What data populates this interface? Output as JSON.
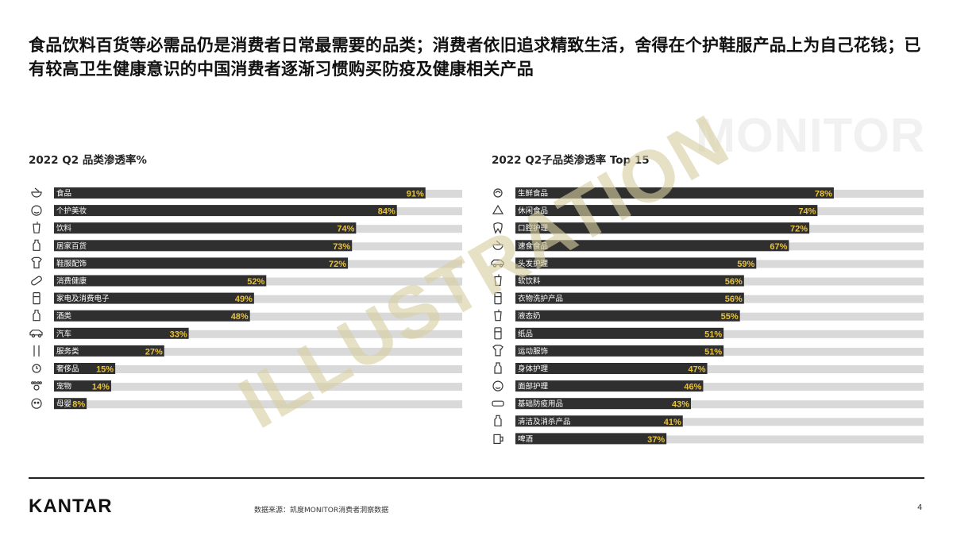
{
  "headline": "食品饮料百货等必需品仍是消费者日常最需要的品类；消费者依旧追求精致生活，舍得在个护鞋服产品上为自己花钱；已有较高卫生健康意识的中国消费者逐渐习惯购买防疫及健康相关产品",
  "watermarks": {
    "monitor": "MONITOR",
    "illustration": "ILLUSTRATION"
  },
  "colors": {
    "bar": "#2f2f2f",
    "track": "#d9d9d9",
    "value": "#e8c23b",
    "label": "#ffffff"
  },
  "chart_data": [
    {
      "type": "bar",
      "orientation": "horizontal",
      "title": "2022 Q2 品类渗透率%",
      "xlim": [
        0,
        100
      ],
      "unit": "%",
      "categories": [
        "食品",
        "个护美妆",
        "饮料",
        "居家百货",
        "鞋服配饰",
        "消费健康",
        "家电及消费电子",
        "酒类",
        "汽车",
        "服务类",
        "奢侈品",
        "宠物",
        "母婴"
      ],
      "values": [
        91,
        84,
        74,
        73,
        72,
        52,
        49,
        48,
        33,
        27,
        15,
        14,
        8
      ],
      "icons": [
        "food-bowl-icon",
        "face-icon",
        "drink-cup-icon",
        "household-bottle-icon",
        "clothing-icon",
        "pill-icon",
        "appliance-icon",
        "wine-bottle-icon",
        "car-icon",
        "service-tools-icon",
        "watch-icon",
        "paw-icon",
        "baby-icon"
      ]
    },
    {
      "type": "bar",
      "orientation": "horizontal",
      "title": "2022 Q2子品类渗透率 Top 15",
      "xlim": [
        0,
        100
      ],
      "unit": "%",
      "categories": [
        "生鲜食品",
        "休闲食品",
        "口腔护理",
        "速食食品",
        "头发护理",
        "软饮料",
        "衣物洗护产品",
        "液态奶",
        "纸品",
        "运动服饰",
        "身体护理",
        "面部护理",
        "基础防疫用品",
        "清洁及消杀产品",
        "啤酒"
      ],
      "values": [
        78,
        74,
        72,
        67,
        59,
        56,
        56,
        55,
        51,
        51,
        47,
        46,
        43,
        41,
        37
      ],
      "icons": [
        "fresh-food-icon",
        "snack-icon",
        "tooth-icon",
        "instant-food-icon",
        "hair-care-icon",
        "soft-drink-icon",
        "laundry-icon",
        "milk-icon",
        "tissue-icon",
        "sportswear-icon",
        "body-care-icon",
        "face-care-icon",
        "mask-icon",
        "cleaning-spray-icon",
        "beer-icon"
      ]
    }
  ],
  "footer": {
    "logo": "KANTAR",
    "source": "数据来源：凯度MONITOR消费者洞察数据",
    "page": "4"
  }
}
